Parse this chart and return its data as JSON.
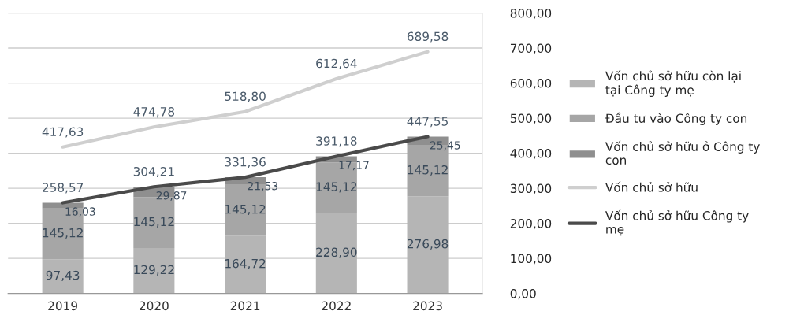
{
  "chart_data": {
    "type": "bar",
    "stacked": true,
    "categories": [
      "2019",
      "2020",
      "2021",
      "2022",
      "2023"
    ],
    "series": [
      {
        "name": "Vốn chủ sở hữu còn lại tại Công ty mẹ",
        "color": "#b5b5b5",
        "values": [
          97.43,
          129.22,
          164.72,
          228.9,
          276.98
        ],
        "value_labels": [
          "97,43",
          "129,22",
          "164,72",
          "228,90",
          "276,98"
        ]
      },
      {
        "name": "Đầu tư vào Công ty con",
        "color": "#a6a6a6",
        "values": [
          145.12,
          145.12,
          145.12,
          145.12,
          145.12
        ],
        "value_labels": [
          "145,12",
          "145,12",
          "145,12",
          "145,12",
          "145,12"
        ]
      },
      {
        "name": "Vốn chủ sở hữu ở Công ty con",
        "color": "#8f8f8f",
        "values": [
          16.03,
          29.87,
          21.53,
          17.17,
          25.45
        ],
        "value_labels": [
          "16,03",
          "29,87",
          "21,53",
          "17,17",
          "25,45"
        ]
      },
      {
        "name": "Vốn chủ sở hữu",
        "type": "line",
        "color": "#cfcfcf",
        "values": [
          417.63,
          474.78,
          518.8,
          612.64,
          689.58
        ],
        "value_labels": [
          "417,63",
          "474,78",
          "518,80",
          "612,64",
          "689,58"
        ]
      },
      {
        "name": "Vốn chủ sở hữu Công ty mẹ",
        "type": "line",
        "color": "#4a4a4a",
        "values": [
          258.57,
          304.21,
          331.36,
          391.18,
          447.55
        ],
        "value_labels": [
          "258,57",
          "304,21",
          "331,36",
          "391,18",
          "447,55"
        ]
      }
    ],
    "ylim": [
      0,
      800
    ],
    "yticks": [
      {
        "value": 0,
        "label": "0,00"
      },
      {
        "value": 100,
        "label": "100,00"
      },
      {
        "value": 200,
        "label": "200,00"
      },
      {
        "value": 300,
        "label": "300,00"
      },
      {
        "value": 400,
        "label": "400,00"
      },
      {
        "value": 500,
        "label": "500,00"
      },
      {
        "value": 600,
        "label": "600,00"
      },
      {
        "value": 700,
        "label": "700,00"
      },
      {
        "value": 800,
        "label": "800,00"
      }
    ],
    "grid": "y",
    "legend": "right",
    "marker": "none",
    "line_style": "solid"
  }
}
